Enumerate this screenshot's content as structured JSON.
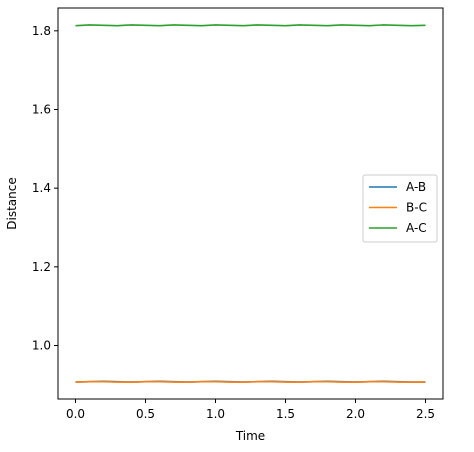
{
  "chart_data": {
    "type": "line",
    "title": "",
    "xlabel": "Time",
    "ylabel": "Distance",
    "xlim": [
      -0.125,
      2.625
    ],
    "ylim": [
      0.864,
      1.858
    ],
    "xticks": [
      "0.0",
      "0.5",
      "1.0",
      "1.5",
      "2.0",
      "2.5"
    ],
    "yticks": [
      "1.0",
      "1.2",
      "1.4",
      "1.6",
      "1.8"
    ],
    "grid": false,
    "legend_position": "center-right",
    "series": [
      {
        "name": "A-B",
        "color": "#1f77b4",
        "x": [
          0.0,
          0.1,
          0.2,
          0.3,
          0.4,
          0.5,
          0.6,
          0.7,
          0.8,
          0.9,
          1.0,
          1.1,
          1.2,
          1.3,
          1.4,
          1.5,
          1.6,
          1.7,
          1.8,
          1.9,
          2.0,
          2.1,
          2.2,
          2.3,
          2.4,
          2.5
        ],
        "y": [
          0.907,
          0.908,
          0.909,
          0.908,
          0.907,
          0.908,
          0.909,
          0.908,
          0.907,
          0.908,
          0.909,
          0.908,
          0.907,
          0.908,
          0.909,
          0.908,
          0.907,
          0.908,
          0.909,
          0.908,
          0.907,
          0.908,
          0.909,
          0.908,
          0.907,
          0.907
        ]
      },
      {
        "name": "B-C",
        "color": "#ff7f0e",
        "x": [
          0.0,
          0.1,
          0.2,
          0.3,
          0.4,
          0.5,
          0.6,
          0.7,
          0.8,
          0.9,
          1.0,
          1.1,
          1.2,
          1.3,
          1.4,
          1.5,
          1.6,
          1.7,
          1.8,
          1.9,
          2.0,
          2.1,
          2.2,
          2.3,
          2.4,
          2.5
        ],
        "y": [
          0.907,
          0.908,
          0.908,
          0.907,
          0.907,
          0.908,
          0.908,
          0.907,
          0.907,
          0.908,
          0.908,
          0.907,
          0.907,
          0.908,
          0.908,
          0.907,
          0.907,
          0.908,
          0.908,
          0.907,
          0.907,
          0.908,
          0.908,
          0.907,
          0.907,
          0.907
        ]
      },
      {
        "name": "A-C",
        "color": "#2ca02c",
        "x": [
          0.0,
          0.1,
          0.2,
          0.3,
          0.4,
          0.5,
          0.6,
          0.7,
          0.8,
          0.9,
          1.0,
          1.1,
          1.2,
          1.3,
          1.4,
          1.5,
          1.6,
          1.7,
          1.8,
          1.9,
          2.0,
          2.1,
          2.2,
          2.3,
          2.4,
          2.5
        ],
        "y": [
          1.813,
          1.815,
          1.814,
          1.813,
          1.815,
          1.814,
          1.813,
          1.815,
          1.814,
          1.813,
          1.815,
          1.814,
          1.813,
          1.815,
          1.814,
          1.813,
          1.815,
          1.814,
          1.813,
          1.815,
          1.814,
          1.813,
          1.815,
          1.814,
          1.813,
          1.814
        ]
      }
    ]
  }
}
